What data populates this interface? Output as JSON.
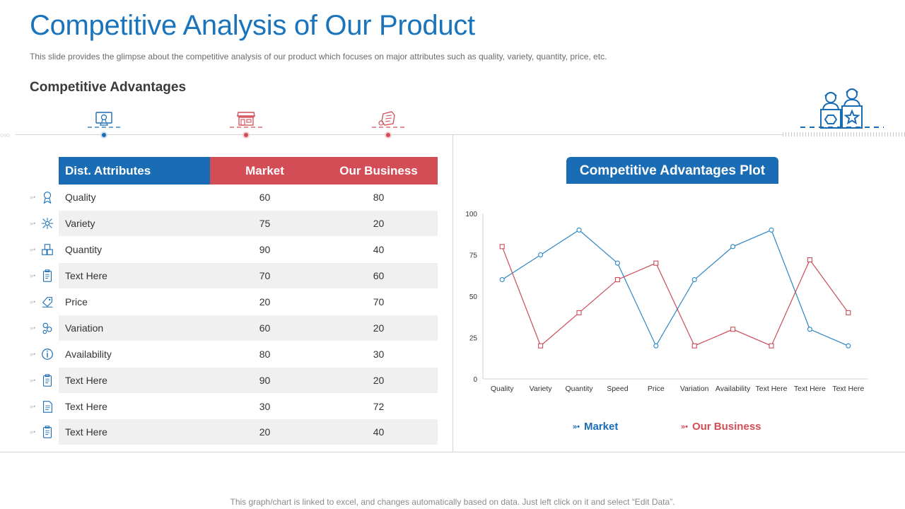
{
  "slide": {
    "title": "Competitive Analysis of Our Product",
    "subtitle": "This slide provides  the glimpse about the competitive analysis of our product which focuses on major attributes such as quality, variety,  quantity, price, etc.",
    "section_heading": "Competitive Advantages",
    "footnote": "This graph/chart is linked to excel,  and changes automatically based on data. Just left click on it and select “Edit Data”."
  },
  "icons": {
    "advantage_1": "monitor-award-icon",
    "advantage_2": "storefront-icon",
    "advantage_3": "product-tag-icon",
    "team": "people-at-desks-icon"
  },
  "colors": {
    "blue": "#1a6db5",
    "red": "#d34d57",
    "title_blue": "#1a74bb",
    "line_blue": "#2a86c6",
    "line_red": "#cc4b5a"
  },
  "table": {
    "headers": {
      "attribute": "Dist. Attributes",
      "market": "Market",
      "ours": "Our  Business"
    },
    "rows": [
      {
        "label": "Quality",
        "market": "60",
        "ours": "80",
        "icon": "quality-medal-icon"
      },
      {
        "label": "Variety",
        "market": "75",
        "ours": "20",
        "icon": "variety-nodes-icon"
      },
      {
        "label": "Quantity",
        "market": "90",
        "ours": "40",
        "icon": "boxes-icon"
      },
      {
        "label": "Text Here",
        "market": "70",
        "ours": "60",
        "icon": "clipboard-icon"
      },
      {
        "label": "Price",
        "market": "20",
        "ours": "70",
        "icon": "price-tag-icon"
      },
      {
        "label": "Variation",
        "market": "60",
        "ours": "20",
        "icon": "variation-icon"
      },
      {
        "label": "Availability",
        "market": "80",
        "ours": "30",
        "icon": "info-icon"
      },
      {
        "label": "Text Here",
        "market": "90",
        "ours": "20",
        "icon": "clipboard-icon"
      },
      {
        "label": "Text Here",
        "market": "30",
        "ours": "72",
        "icon": "document-icon"
      },
      {
        "label": "Text Here",
        "market": "20",
        "ours": "40",
        "icon": "clipboard-icon"
      }
    ]
  },
  "chart_title": "Competitive Advantages Plot",
  "chart_data": {
    "type": "line",
    "categories": [
      "Quality",
      "Variety",
      "Quantity",
      "Speed",
      "Price",
      "Variation",
      "Availability",
      "Text Here",
      "Text Here",
      "Text Here"
    ],
    "series": [
      {
        "name": "Market",
        "values": [
          60,
          75,
          90,
          70,
          20,
          60,
          80,
          90,
          30,
          20
        ],
        "color": "#2a86c6",
        "marker": "circle"
      },
      {
        "name": "Our  Business",
        "values": [
          80,
          20,
          40,
          60,
          70,
          20,
          30,
          20,
          72,
          40
        ],
        "color": "#cc4b5a",
        "marker": "square"
      }
    ],
    "ylim": [
      0,
      100
    ],
    "yticks": [
      "0",
      "25",
      "50",
      "75",
      "100"
    ],
    "grid": false,
    "legend": "bottom"
  },
  "legend": {
    "market": "Market",
    "ours": "Our  Business",
    "marker": "»•"
  }
}
